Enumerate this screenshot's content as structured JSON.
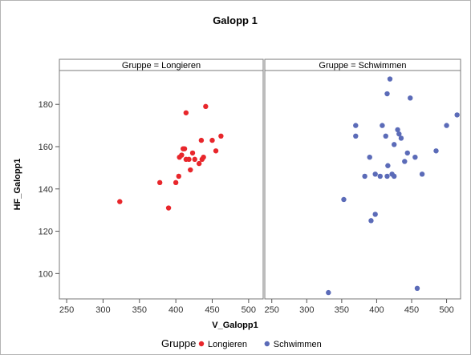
{
  "chart_data": {
    "type": "scatter",
    "title": "Galopp 1",
    "xlabel": "V_Galopp1",
    "ylabel": "HF_Galopp1",
    "xlim": [
      240,
      520
    ],
    "ylim": [
      88,
      196
    ],
    "x_ticks": [
      250,
      300,
      350,
      400,
      450,
      500
    ],
    "y_ticks": [
      100,
      120,
      140,
      160,
      180
    ],
    "grid": false,
    "legend": {
      "title": "Gruppe",
      "position": "bottom",
      "entries": [
        {
          "label": "Longieren",
          "color": "#e8262b"
        },
        {
          "label": "Schwimmen",
          "color": "#5b6bb8"
        }
      ]
    },
    "panels": [
      {
        "label": "Gruppe = Longieren",
        "series_index": 0,
        "points": [
          [
            323,
            134
          ],
          [
            378,
            143
          ],
          [
            390,
            131
          ],
          [
            400,
            143
          ],
          [
            404,
            146
          ],
          [
            405,
            155
          ],
          [
            408,
            156
          ],
          [
            410,
            159
          ],
          [
            412,
            159
          ],
          [
            414,
            176
          ],
          [
            414,
            154
          ],
          [
            418,
            154
          ],
          [
            420,
            149
          ],
          [
            423,
            157
          ],
          [
            426,
            154
          ],
          [
            432,
            152
          ],
          [
            435,
            163
          ],
          [
            436,
            154
          ],
          [
            438,
            155
          ],
          [
            441,
            179
          ],
          [
            450,
            163
          ],
          [
            455,
            158
          ],
          [
            462,
            165
          ]
        ]
      },
      {
        "label": "Gruppe = Schwimmen",
        "series_index": 1,
        "points": [
          [
            331,
            91
          ],
          [
            353,
            135
          ],
          [
            370,
            170
          ],
          [
            370,
            165
          ],
          [
            383,
            146
          ],
          [
            390,
            155
          ],
          [
            392,
            125
          ],
          [
            398,
            128
          ],
          [
            398,
            147
          ],
          [
            405,
            146
          ],
          [
            408,
            170
          ],
          [
            413,
            165
          ],
          [
            415,
            146
          ],
          [
            415,
            185
          ],
          [
            416,
            151
          ],
          [
            419,
            192
          ],
          [
            422,
            147
          ],
          [
            425,
            146
          ],
          [
            425,
            161
          ],
          [
            430,
            168
          ],
          [
            432,
            166
          ],
          [
            435,
            164
          ],
          [
            440,
            153
          ],
          [
            444,
            157
          ],
          [
            448,
            183
          ],
          [
            455,
            155
          ],
          [
            458,
            93
          ],
          [
            465,
            147
          ],
          [
            485,
            158
          ],
          [
            500,
            170
          ],
          [
            515,
            175
          ]
        ]
      }
    ]
  }
}
